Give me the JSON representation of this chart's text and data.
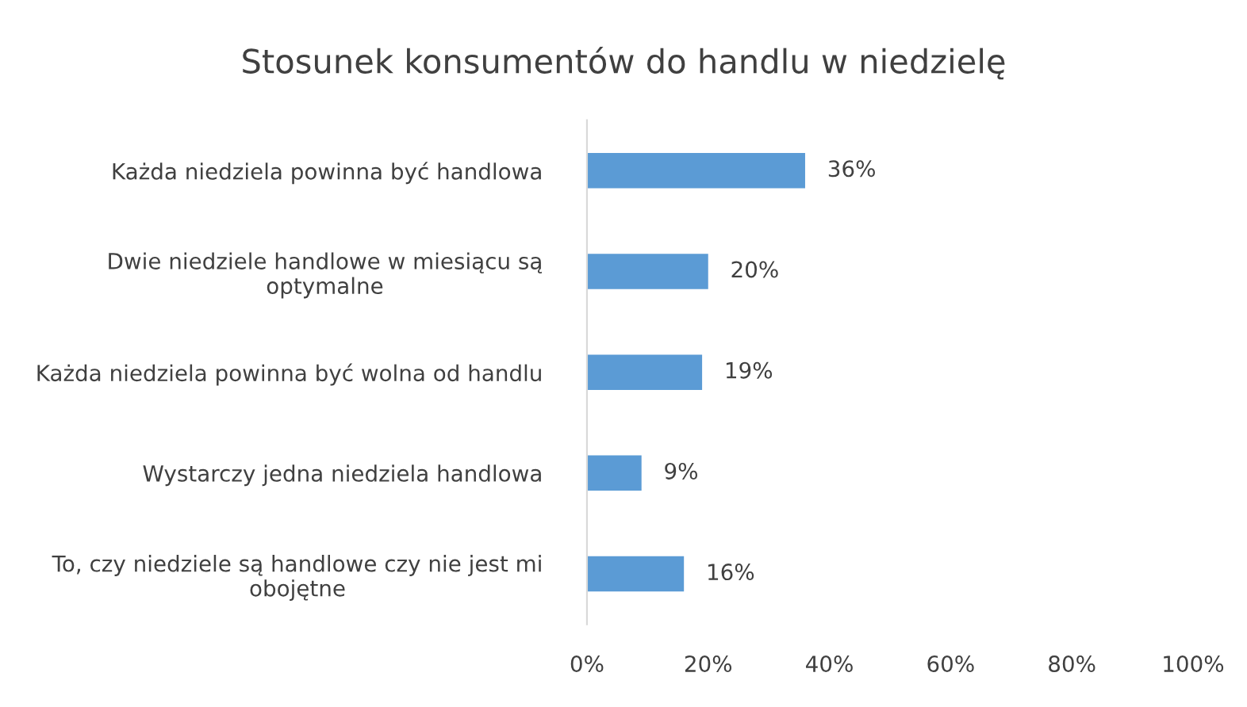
{
  "chart_data": {
    "type": "bar",
    "orientation": "horizontal",
    "title": "Stosunek konsumentów do handlu w niedzielę",
    "categories": [
      "Każda niedziela powinna być handlowa",
      "Dwie niedziele handlowe w miesiącu są\noptymalne",
      "Każda niedziela powinna być wolna od handlu",
      "Wystarczy jedna niedziela handlowa",
      "To, czy niedziele są handlowe czy nie jest mi\nobojętne"
    ],
    "values": [
      36,
      20,
      19,
      9,
      16
    ],
    "value_labels": [
      "36%",
      "20%",
      "19%",
      "9%",
      "16%"
    ],
    "color": "#5b9bd5",
    "xlim": [
      0,
      100
    ],
    "xticks": [
      {
        "value": 0,
        "label": "0%"
      },
      {
        "value": 20,
        "label": "20%"
      },
      {
        "value": 40,
        "label": "40%"
      },
      {
        "value": 60,
        "label": "60%"
      },
      {
        "value": 80,
        "label": "80%"
      },
      {
        "value": 100,
        "label": "100%"
      }
    ],
    "grid": false,
    "legend": false
  }
}
